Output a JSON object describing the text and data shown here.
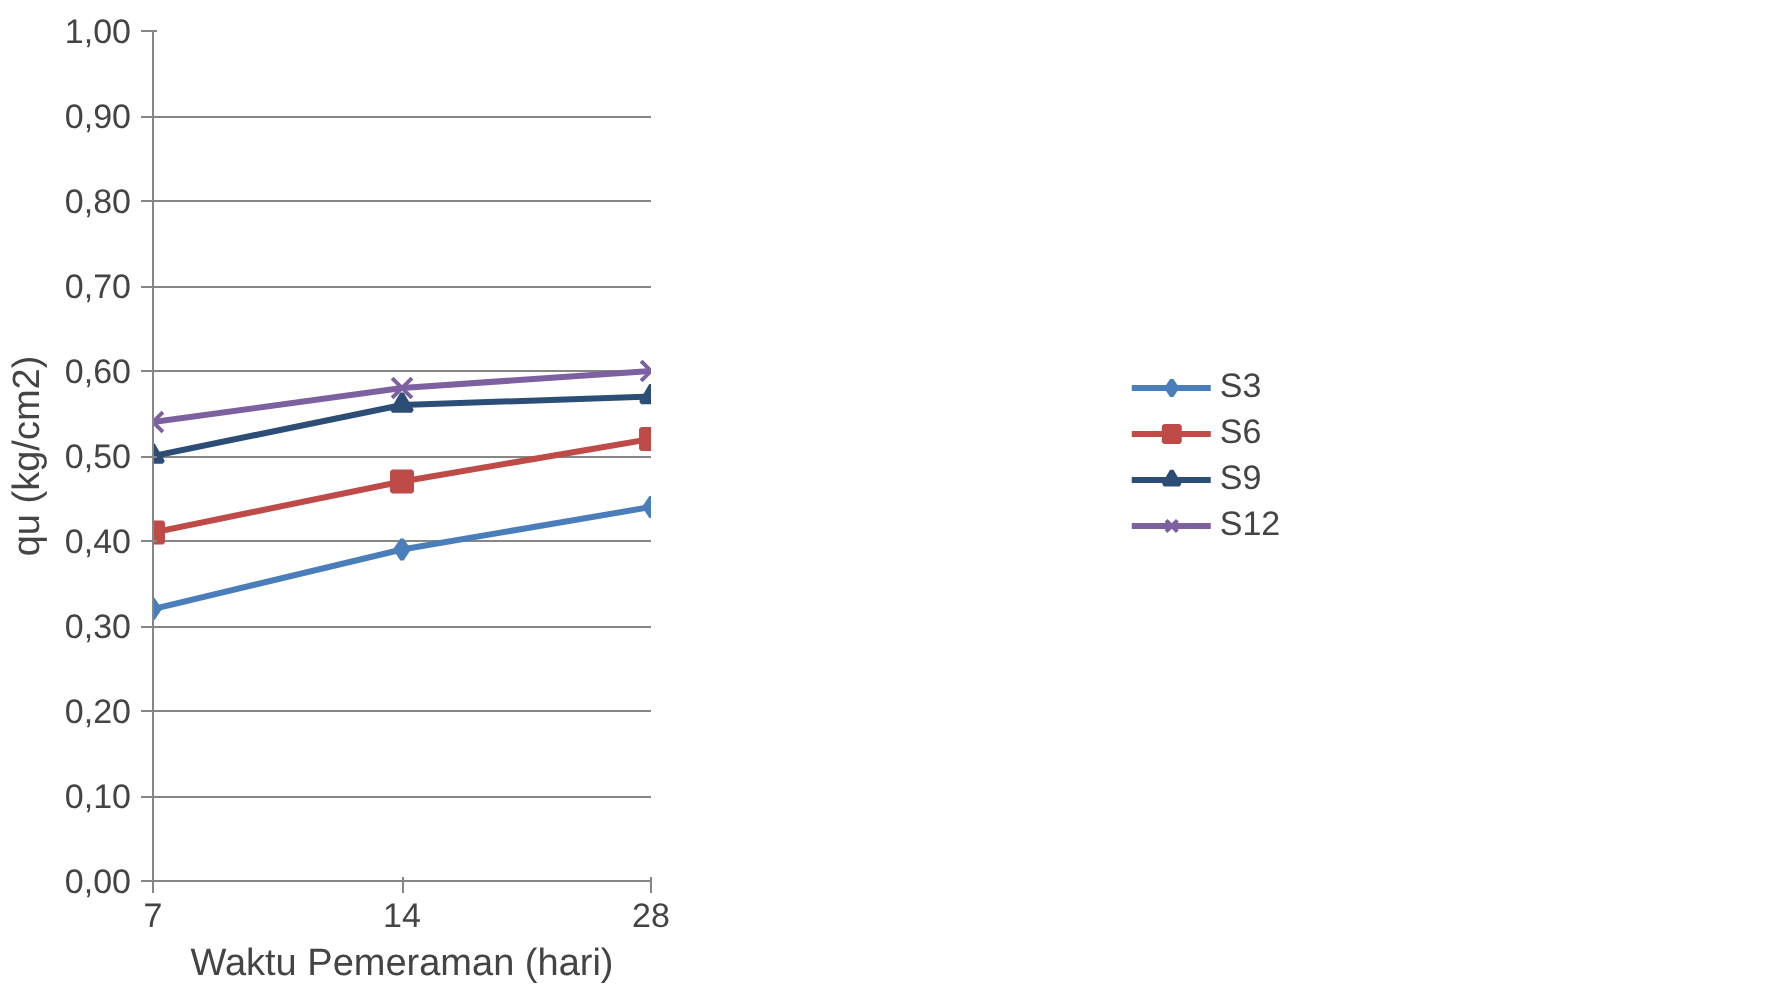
{
  "chart_data": {
    "type": "line",
    "xlabel": "Waktu Pemeraman (hari)",
    "ylabel": "qu (kg/cm2)",
    "categories": [
      "7",
      "14",
      "28"
    ],
    "series": [
      {
        "name": "S3",
        "color": "#4a7ebb",
        "marker": "diamond",
        "values": [
          0.32,
          0.39,
          0.44
        ]
      },
      {
        "name": "S6",
        "color": "#be4b48",
        "marker": "square",
        "values": [
          0.41,
          0.47,
          0.52
        ]
      },
      {
        "name": "S9",
        "color": "#2c4d75",
        "marker": "triangle",
        "values": [
          0.5,
          0.56,
          0.57
        ]
      },
      {
        "name": "S12",
        "color": "#7d60a0",
        "marker": "cross",
        "values": [
          0.54,
          0.58,
          0.6
        ]
      }
    ],
    "ylim": [
      0,
      1
    ],
    "yticks": [
      {
        "value": 0,
        "label": "0,00"
      },
      {
        "value": 0.1,
        "label": "0,10"
      },
      {
        "value": 0.2,
        "label": "0,20"
      },
      {
        "value": 0.3,
        "label": "0,30"
      },
      {
        "value": 0.4,
        "label": "0,40"
      },
      {
        "value": 0.5,
        "label": "0,50"
      },
      {
        "value": 0.6,
        "label": "0,60"
      },
      {
        "value": 0.7,
        "label": "0,70"
      },
      {
        "value": 0.8,
        "label": "0,80"
      },
      {
        "value": 0.9,
        "label": "0,90"
      },
      {
        "value": 1,
        "label": "1,00"
      }
    ],
    "grid": "y",
    "legend": "right",
    "line_style": "solid"
  }
}
